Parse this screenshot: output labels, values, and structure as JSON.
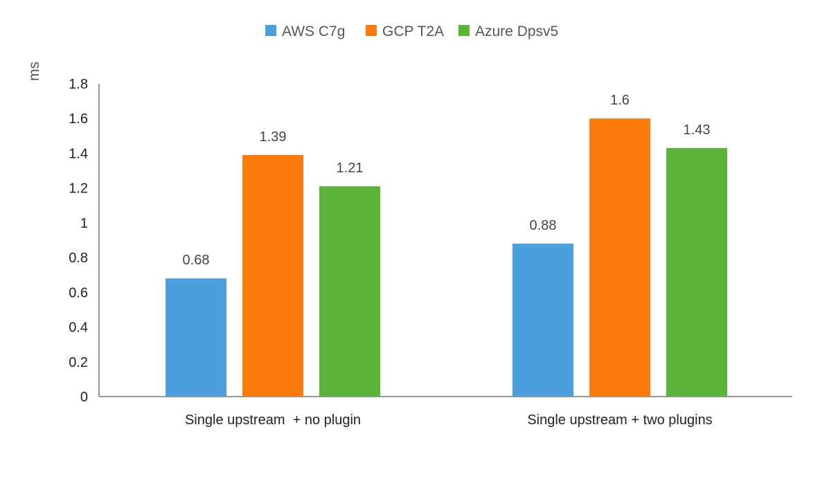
{
  "chart_data": {
    "type": "bar",
    "title": "",
    "xlabel": "",
    "ylabel": "ms",
    "ylim": [
      0,
      1.8
    ],
    "yticks": [
      "0",
      "0.2",
      "0.4",
      "0.6",
      "0.8",
      "1",
      "1.2",
      "1.4",
      "1.6",
      "1.8"
    ],
    "grid": false,
    "legend": "top",
    "categories": [
      "Single upstream  + no plugin",
      "Single upstream + two plugins"
    ],
    "series": [
      {
        "name": "AWS C7g",
        "color": "#4a9fdc",
        "values": [
          0.68,
          0.88
        ],
        "labels": [
          "0.68",
          "0.88"
        ]
      },
      {
        "name": "GCP T2A",
        "color": "#fd7a0c",
        "values": [
          1.39,
          1.6
        ],
        "labels": [
          "1.39",
          "1.6"
        ]
      },
      {
        "name": "Azure Dpsv5",
        "color": "#5cb33a",
        "values": [
          1.21,
          1.43
        ],
        "labels": [
          "1.21",
          "1.43"
        ]
      }
    ]
  }
}
